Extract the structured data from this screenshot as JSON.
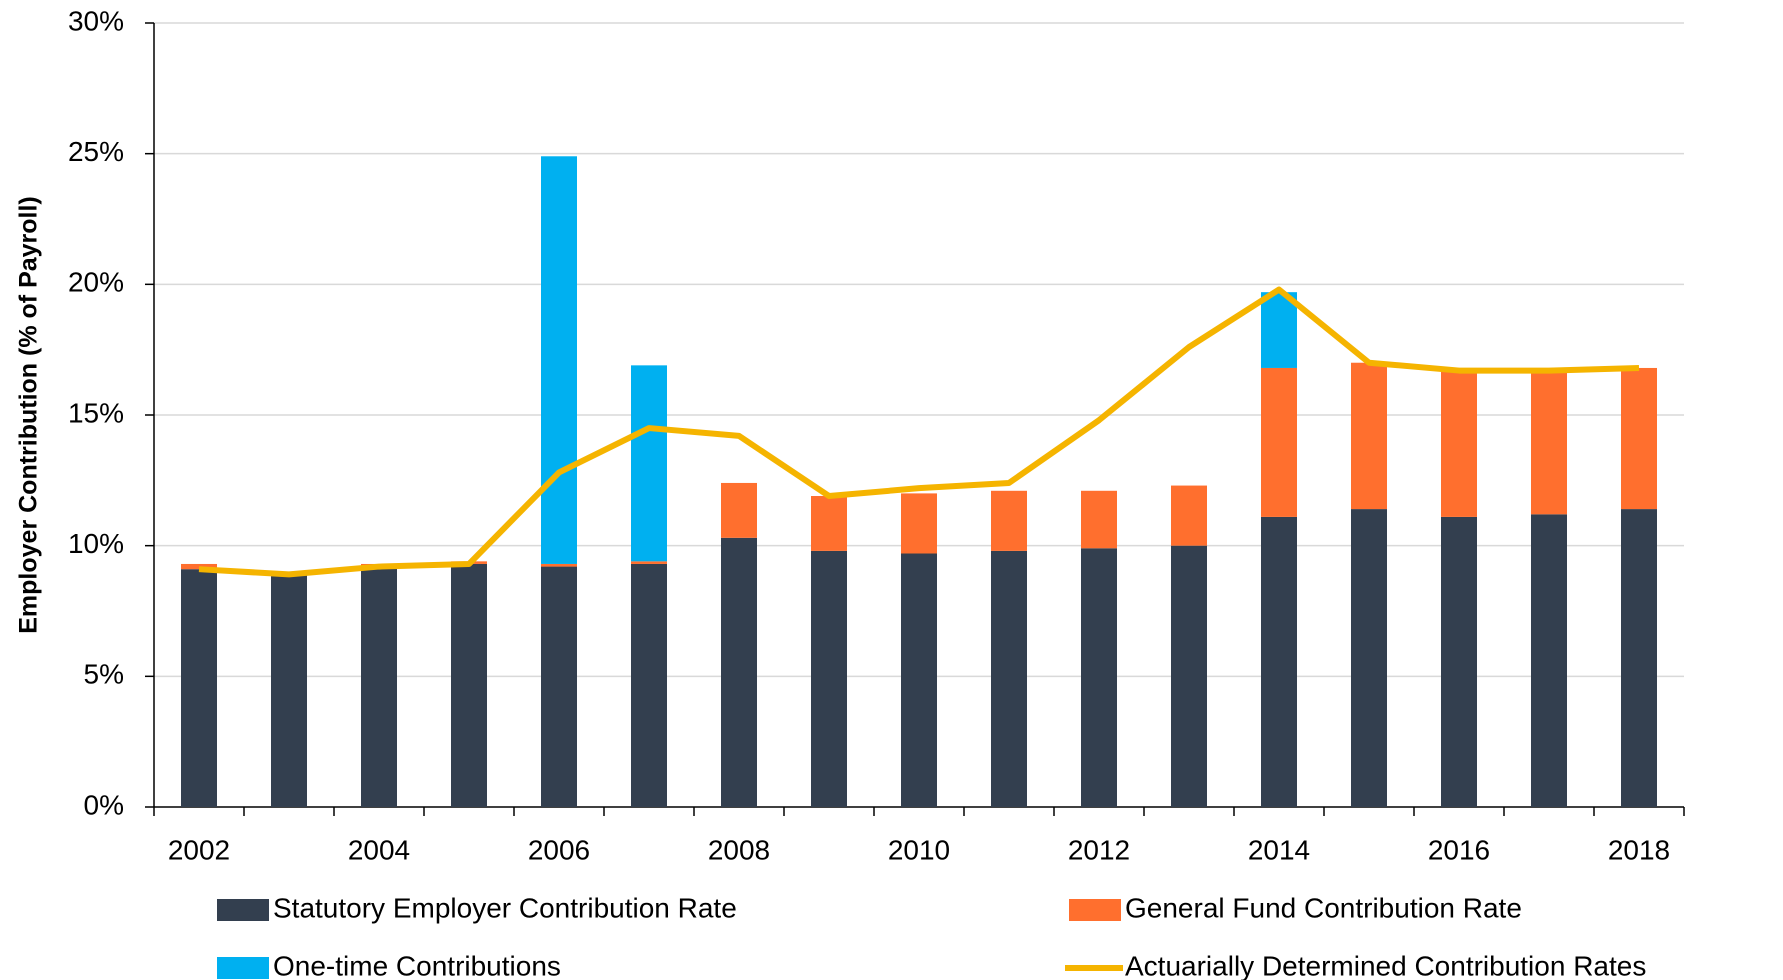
{
  "chart_data": {
    "type": "bar",
    "stacked": true,
    "y_label": "Employer Contribution (% of Payroll)",
    "categories": [
      "2002",
      null,
      "2004",
      null,
      "2006",
      null,
      "2008",
      null,
      "2010",
      null,
      "2012",
      null,
      "2014",
      null,
      "2016",
      null,
      "2018"
    ],
    "series": [
      {
        "name": "Statutory Employer Contribution Rate",
        "type": "bar",
        "color": "#333f4f",
        "values": [
          9.1,
          8.9,
          9.2,
          9.3,
          9.2,
          9.3,
          10.3,
          9.8,
          9.7,
          9.8,
          9.9,
          10.0,
          11.1,
          11.4,
          11.1,
          11.2,
          11.4
        ]
      },
      {
        "name": "General Fund Contribution Rate",
        "type": "bar",
        "color": "#ff6f2e",
        "values": [
          0.2,
          0,
          0.1,
          0.1,
          0.1,
          0.1,
          2.1,
          2.1,
          2.3,
          2.3,
          2.2,
          2.3,
          5.7,
          5.6,
          5.7,
          5.6,
          5.4
        ]
      },
      {
        "name": "One-time Contributions",
        "type": "bar",
        "color": "#00b0f0",
        "values": [
          0,
          0,
          0,
          0,
          15.6,
          7.5,
          0,
          0,
          0,
          0,
          0,
          0,
          2.9,
          0,
          0,
          0,
          0
        ]
      },
      {
        "name": "Actuarially Determined Contribution Rates",
        "type": "line",
        "color": "#f5b400",
        "values": [
          9.1,
          8.9,
          9.2,
          9.3,
          12.8,
          14.5,
          14.2,
          11.9,
          12.2,
          12.4,
          14.8,
          17.6,
          19.8,
          17.0,
          16.7,
          16.7,
          16.8
        ]
      }
    ],
    "ylim": [
      0,
      30
    ],
    "yticks": [
      {
        "value": 0,
        "label": "0%"
      },
      {
        "value": 5,
        "label": "5%"
      },
      {
        "value": 10,
        "label": "10%"
      },
      {
        "value": 15,
        "label": "15%"
      },
      {
        "value": 20,
        "label": "20%"
      },
      {
        "value": 25,
        "label": "25%"
      },
      {
        "value": 30,
        "label": "30%"
      }
    ],
    "grid": true
  }
}
